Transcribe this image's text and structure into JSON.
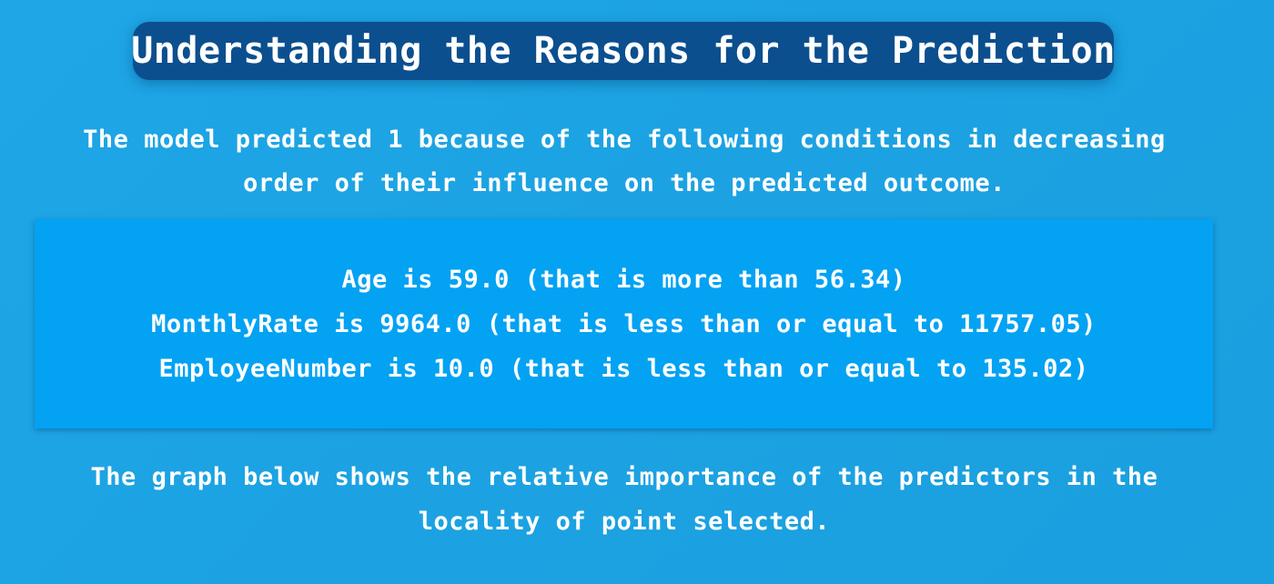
{
  "header": {
    "title": "Understanding the Reasons for the Prediction"
  },
  "intro": {
    "line1": "The model predicted 1 because of the following conditions in decreasing",
    "line2": "order of their influence on the predicted outcome."
  },
  "conditions": [
    "Age is 59.0 (that is more than 56.34)",
    "MonthlyRate is 9964.0 (that is less than or equal to 11757.05)",
    "EmployeeNumber is 10.0 (that is less than or equal to 135.02)"
  ],
  "outro": {
    "line1": "The graph below shows the relative importance of the predictors in the",
    "line2": "locality of point selected."
  },
  "colors": {
    "background": "#1ea6e6",
    "title_pill": "#0b4f8f",
    "conditions_box": "#03a2f3",
    "text": "#ffffff"
  }
}
